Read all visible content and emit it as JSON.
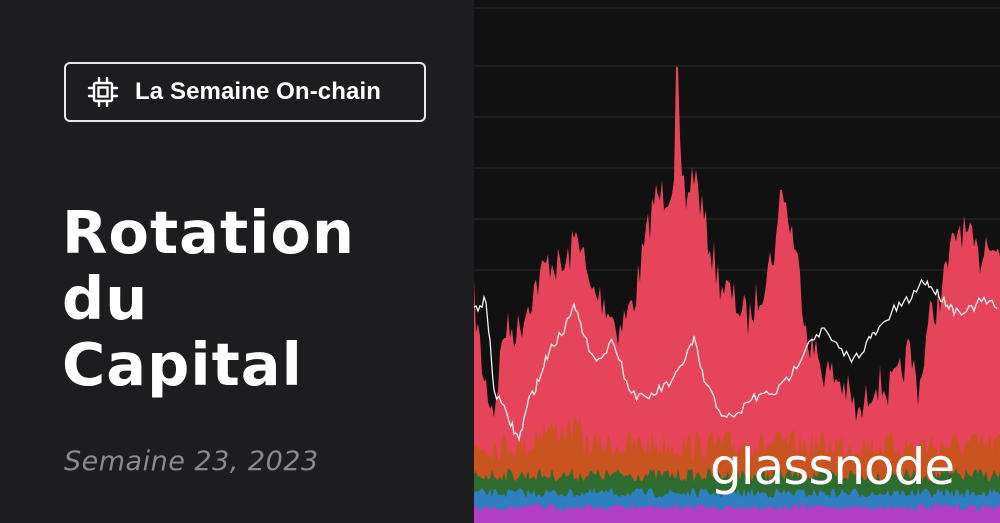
{
  "badge": {
    "label": "La Semaine On-chain",
    "icon": "chip-icon"
  },
  "title": {
    "line1": "Rotation du",
    "line2": "Capital"
  },
  "subtitle": "Semaine 23, 2023",
  "logo": "glassnode",
  "colors": {
    "background": "#1d1d1f",
    "chart_background": "#111112",
    "red_area": "#e5445a",
    "orange_area": "#c9541f",
    "green_area": "#2e6b2e",
    "blue_area": "#2d7fc0",
    "purple_area": "#b23fc4",
    "price_line": "#f2f2f2",
    "gridline": "#2c2c2e"
  }
}
